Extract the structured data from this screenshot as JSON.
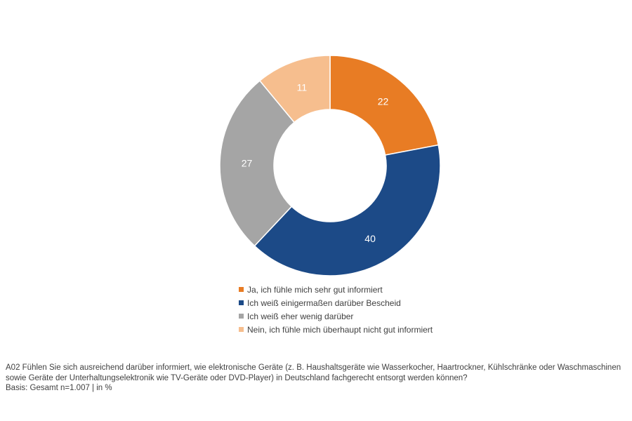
{
  "chart_data": {
    "type": "pie",
    "donut": true,
    "categories": [
      "Ja, ich fühle mich sehr gut informiert",
      "Ich weiß einigermaßen darüber Bescheid",
      "Ich weiß eher wenig darüber",
      "Nein, ich fühle mich überhaupt nicht gut informiert"
    ],
    "values": [
      22,
      40,
      27,
      11
    ],
    "colors": [
      "#E87C24",
      "#1C4A87",
      "#A5A5A5",
      "#F6BE8E"
    ],
    "legend_position": "bottom"
  },
  "footer": {
    "question": "A02 Fühlen Sie sich ausreichend darüber informiert, wie elektronische Geräte (z. B. Haushaltsgeräte wie Wasserkocher, Haartrockner, Kühlschränke oder Waschmaschinen sowie Geräte der Unterhaltungselektronik wie TV-Geräte oder DVD-Player) in Deutschland fachgerecht entsorgt werden können?",
    "basis": "Basis: Gesamt n=1.007 | in %"
  }
}
